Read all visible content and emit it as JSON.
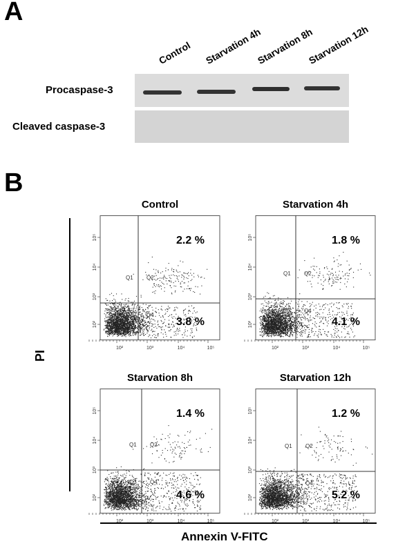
{
  "panelA": {
    "label": "A",
    "lanes": [
      "Control",
      "Starvation 4h",
      "Starvation 8h",
      "Starvation 12h"
    ],
    "rows": [
      "Procaspase-3",
      "Cleaved caspase-3"
    ]
  },
  "panelB": {
    "label": "B",
    "ylabel": "PI",
    "xlabel": "Annexin V-FITC"
  },
  "chart_data": {
    "type": "scatter",
    "xlabel": "Annexin V-FITC",
    "ylabel": "PI",
    "x_scale": "log",
    "y_scale": "log",
    "x_ticks": [
      "10²",
      "10³",
      "10⁴",
      "10⁵"
    ],
    "y_ticks": [
      "10²",
      "10³",
      "10⁴",
      "10⁵"
    ],
    "quadrant_labels": [
      "Q1",
      "Q2",
      "Q3",
      "Q4"
    ],
    "panels": [
      {
        "title": "Control",
        "Q2": "2.2 %",
        "Q4": "3.8 %",
        "q2_value": 2.2,
        "q4_value": 3.8
      },
      {
        "title": "Starvation 4h",
        "Q2": "1.8 %",
        "Q4": "4.1 %",
        "q2_value": 1.8,
        "q4_value": 4.1
      },
      {
        "title": "Starvation 8h",
        "Q2": "1.4 %",
        "Q4": "4.6 %",
        "q2_value": 1.4,
        "q4_value": 4.6
      },
      {
        "title": "Starvation 12h",
        "Q2": "1.2 %",
        "Q4": "5.2 %",
        "q2_value": 1.2,
        "q4_value": 5.2
      }
    ]
  }
}
